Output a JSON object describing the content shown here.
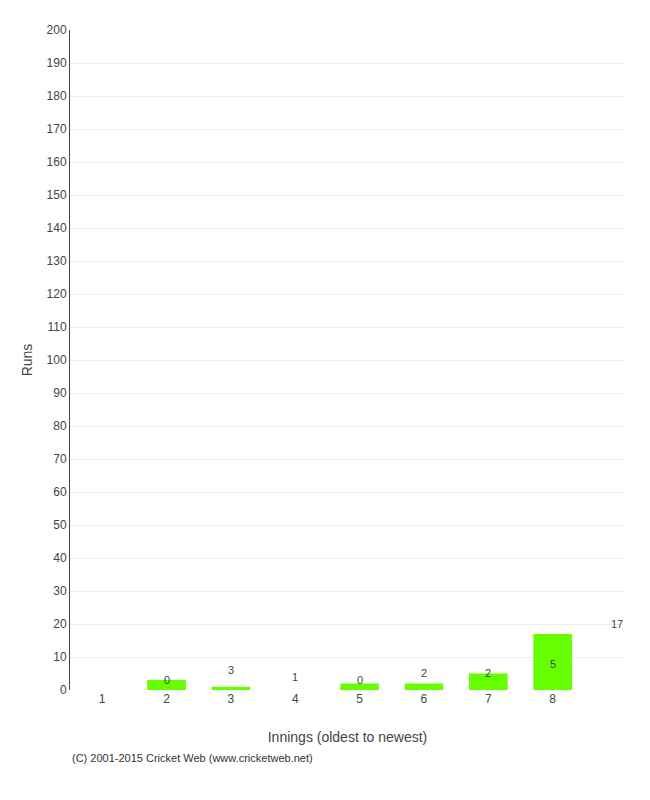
{
  "chart_data": {
    "type": "bar",
    "xlabel": "Innings (oldest to newest)",
    "ylabel": "Runs",
    "categories": [
      1,
      2,
      3,
      4,
      5,
      6,
      7,
      8
    ],
    "values": [
      0,
      3,
      1,
      0,
      2,
      2,
      5,
      17
    ],
    "color": "#66ff00",
    "ylim": [
      0,
      200
    ],
    "yticks": [
      0,
      10,
      20,
      30,
      40,
      50,
      60,
      70,
      80,
      90,
      100,
      110,
      120,
      130,
      140,
      150,
      160,
      170,
      180,
      190,
      200
    ],
    "grid": true,
    "data_labels": true,
    "annotations": [
      "(C) 2001-2015 Cricket Web (www.cricketweb.net)"
    ]
  }
}
